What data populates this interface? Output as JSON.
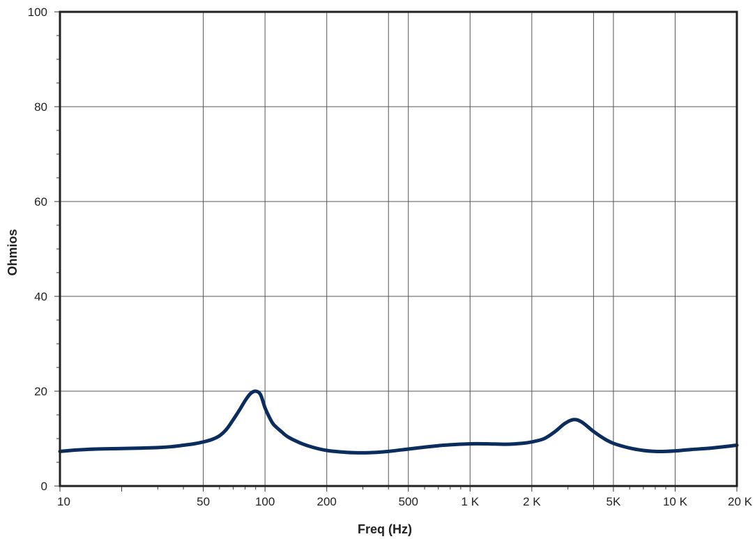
{
  "chart_data": {
    "type": "line",
    "xlabel": "Freq (Hz)",
    "ylabel": "Ohmios",
    "xscale": "log",
    "xlim": [
      10,
      20000
    ],
    "ylim": [
      0,
      100
    ],
    "grid": true,
    "line_color": "#0b2d5e",
    "x_ticks": [
      {
        "value": 10,
        "label": "10"
      },
      {
        "value": 50,
        "label": "50"
      },
      {
        "value": 100,
        "label": "100"
      },
      {
        "value": 200,
        "label": "200"
      },
      {
        "value": 500,
        "label": "500"
      },
      {
        "value": 1000,
        "label": "1 K"
      },
      {
        "value": 2000,
        "label": "2 K"
      },
      {
        "value": 5000,
        "label": "5K"
      },
      {
        "value": 10000,
        "label": "10 K"
      },
      {
        "value": 20000,
        "label": "20 K"
      }
    ],
    "x_extra_gridlines": [
      400,
      4000
    ],
    "y_ticks": [
      {
        "value": 0,
        "label": "0"
      },
      {
        "value": 20,
        "label": "20"
      },
      {
        "value": 40,
        "label": "40"
      },
      {
        "value": 60,
        "label": "60"
      },
      {
        "value": 80,
        "label": "80"
      },
      {
        "value": 100,
        "label": "100"
      }
    ],
    "series": [
      {
        "x": [
          10,
          12,
          15,
          20,
          25,
          30,
          35,
          40,
          45,
          50,
          55,
          60,
          65,
          70,
          75,
          80,
          85,
          90,
          95,
          100,
          105,
          110,
          120,
          130,
          150,
          170,
          200,
          250,
          300,
          350,
          400,
          500,
          600,
          700,
          800,
          1000,
          1200,
          1500,
          1800,
          2000,
          2300,
          2600,
          2900,
          3200,
          3500,
          4000,
          4500,
          5000,
          6000,
          7000,
          8000,
          9000,
          10000,
          12000,
          15000,
          20000
        ],
        "y": [
          7.3,
          7.6,
          7.8,
          7.9,
          8.0,
          8.1,
          8.3,
          8.6,
          8.9,
          9.3,
          9.8,
          10.6,
          12.0,
          14.0,
          16.0,
          18.0,
          19.5,
          20.0,
          19.3,
          16.5,
          14.5,
          13.0,
          11.5,
          10.3,
          9.0,
          8.2,
          7.5,
          7.1,
          7.0,
          7.1,
          7.3,
          7.8,
          8.2,
          8.5,
          8.7,
          8.9,
          8.9,
          8.8,
          9.0,
          9.3,
          10.0,
          11.5,
          13.2,
          14.0,
          13.5,
          11.5,
          10.0,
          9.0,
          8.0,
          7.5,
          7.3,
          7.3,
          7.4,
          7.7,
          8.0,
          8.6
        ]
      }
    ]
  }
}
